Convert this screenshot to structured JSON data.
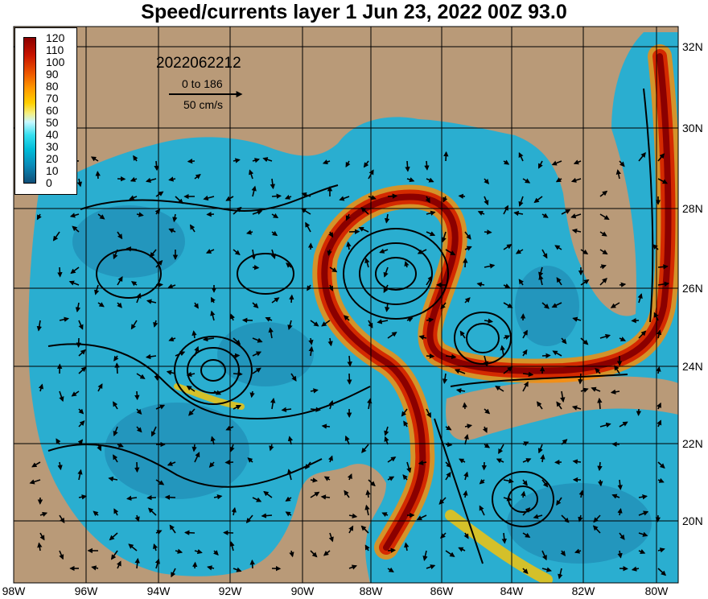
{
  "title": "Speed/currents layer 1 Jun 23, 2022 00Z 93.0",
  "legend": {
    "ticks": [
      "120",
      "110",
      "100",
      "90",
      "80",
      "70",
      "60",
      "50",
      "40",
      "30",
      "20",
      "10",
      "0"
    ],
    "colors": [
      "#8b0000",
      "#b01010",
      "#d42a00",
      "#ee5a00",
      "#ff8c00",
      "#ffc400",
      "#f4ee80",
      "#c8f8ff",
      "#37e0f0",
      "#00bcd8",
      "#0098c0",
      "#1a78a8",
      "#104e78"
    ]
  },
  "annotation": {
    "timestamp": "2022062212",
    "range_text": "0 to 186",
    "reference_vector": "50 cm/s"
  },
  "x_axis": [
    "98W",
    "96W",
    "94W",
    "92W",
    "90W",
    "88W",
    "86W",
    "84W",
    "82W",
    "80W"
  ],
  "y_axis": [
    "32N",
    "30N",
    "28N",
    "26N",
    "24N",
    "22N",
    "20N"
  ],
  "colors": {
    "land": "#b99a78",
    "ocean": "#2aaed0",
    "grid": "#000000",
    "jet": "#8b0000"
  }
}
